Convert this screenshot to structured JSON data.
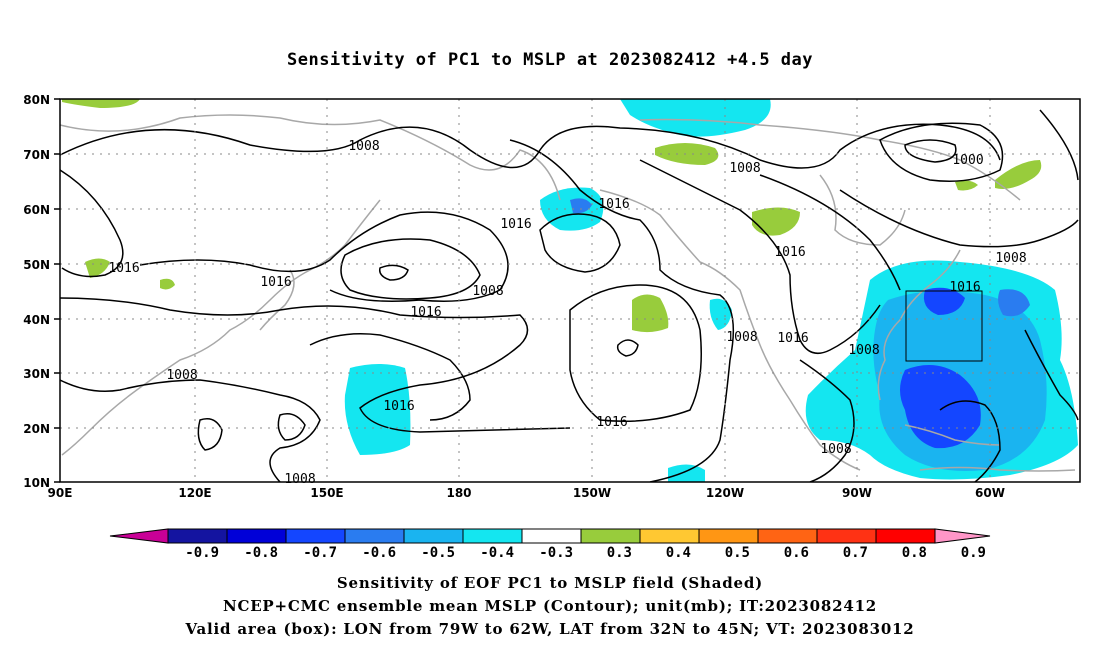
{
  "title": "Sensitivity of PC1 to MSLP at 2023082412 +4.5 day",
  "map": {
    "lat_labels": [
      "80N",
      "70N",
      "60N",
      "50N",
      "40N",
      "30N",
      "20N",
      "10N"
    ],
    "lon_labels": [
      "90E",
      "120E",
      "150E",
      "180",
      "150W",
      "120W",
      "90W",
      "60W"
    ],
    "contour_labels": [
      "1008",
      "1016",
      "1008",
      "1016",
      "1016",
      "1016",
      "1000",
      "1016",
      "1016",
      "1008",
      "1016",
      "1008",
      "1016",
      "1016",
      "1008",
      "1016",
      "1008",
      "1008",
      "1008",
      "1008"
    ],
    "valid_box": {
      "lon_west": "79W",
      "lon_east": "62W",
      "lat_south": "32N",
      "lat_north": "45N"
    }
  },
  "colorbar": {
    "labels": [
      "-0.9",
      "-0.8",
      "-0.7",
      "-0.6",
      "-0.5",
      "-0.4",
      "-0.3",
      "0.3",
      "0.4",
      "0.5",
      "0.6",
      "0.7",
      "0.8",
      "0.9"
    ],
    "colors": [
      "#1414a0",
      "#0000d8",
      "#1446ff",
      "#2a7cf0",
      "#1ab4f0",
      "#14e6f0",
      "#ffffff",
      "#98cc3c",
      "#ffc832",
      "#ff9614",
      "#ff6414",
      "#ff3214",
      "#ff0000"
    ],
    "low_end_color": "#c80096",
    "high_end_color": "#ff96c8"
  },
  "captions": {
    "line1": "Sensitivity of EOF PC1 to MSLP field (Shaded)",
    "line2": "NCEP+CMC ensemble mean MSLP (Contour); unit(mb); IT:2023082412",
    "line3": "Valid area (box): LON from 79W to 62W, LAT from 32N to 45N; VT: 2023083012"
  }
}
